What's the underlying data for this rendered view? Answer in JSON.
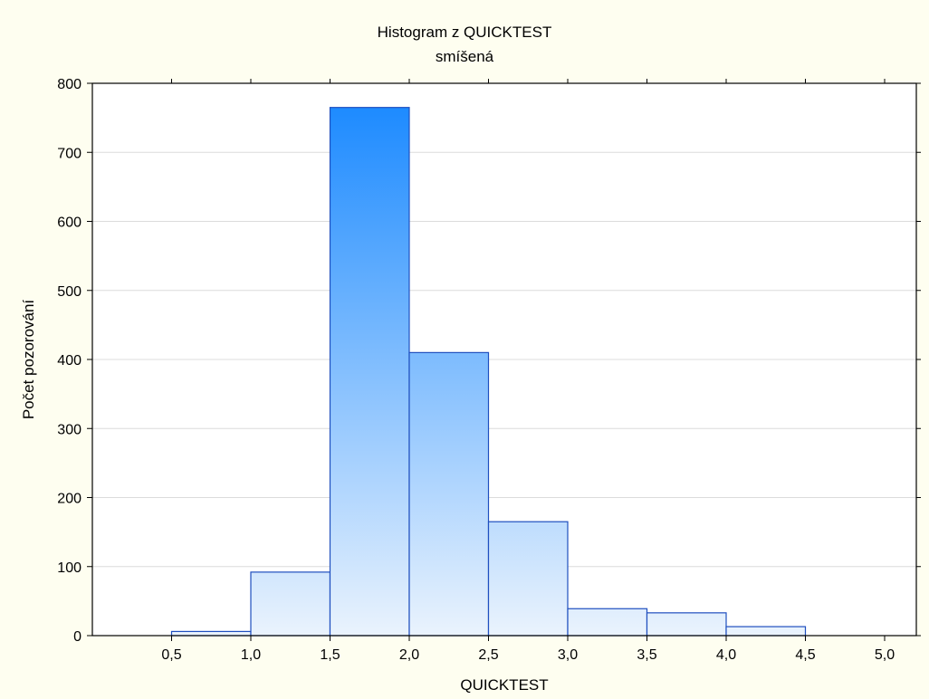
{
  "chart_data": {
    "type": "bar",
    "title": "Histogram z QUICKTEST",
    "subtitle": "smíšená",
    "xlabel": "QUICKTEST",
    "ylabel": "Počet pozorování",
    "bins": [
      {
        "from": 0.5,
        "to": 1.0,
        "count": 6
      },
      {
        "from": 1.0,
        "to": 1.5,
        "count": 92
      },
      {
        "from": 1.5,
        "to": 2.0,
        "count": 765
      },
      {
        "from": 2.0,
        "to": 2.5,
        "count": 410
      },
      {
        "from": 2.5,
        "to": 3.0,
        "count": 165
      },
      {
        "from": 3.0,
        "to": 3.5,
        "count": 39
      },
      {
        "from": 3.5,
        "to": 4.0,
        "count": 33
      },
      {
        "from": 4.0,
        "to": 4.5,
        "count": 13
      },
      {
        "from": 4.5,
        "to": 5.0,
        "count": 0
      }
    ],
    "xlim": [
      0,
      5.2
    ],
    "ylim": [
      0,
      800
    ],
    "x_ticks": [
      "0,5",
      "1,0",
      "1,5",
      "2,0",
      "2,5",
      "3,0",
      "3,5",
      "4,0",
      "4,5",
      "5,0"
    ],
    "x_tick_values": [
      0.5,
      1.0,
      1.5,
      2.0,
      2.5,
      3.0,
      3.5,
      4.0,
      4.5,
      5.0
    ],
    "y_ticks": [
      "0",
      "100",
      "200",
      "300",
      "400",
      "500",
      "600",
      "700",
      "800"
    ],
    "y_tick_values": [
      0,
      100,
      200,
      300,
      400,
      500,
      600,
      700,
      800
    ],
    "grid": true,
    "legend": "none",
    "colors": {
      "bar_top": "#1486ff",
      "bar_bottom": "#e8f2fd",
      "bar_edge": "#1f4fbf",
      "grid": "#dcdcdc",
      "background": "#fefef0"
    }
  }
}
